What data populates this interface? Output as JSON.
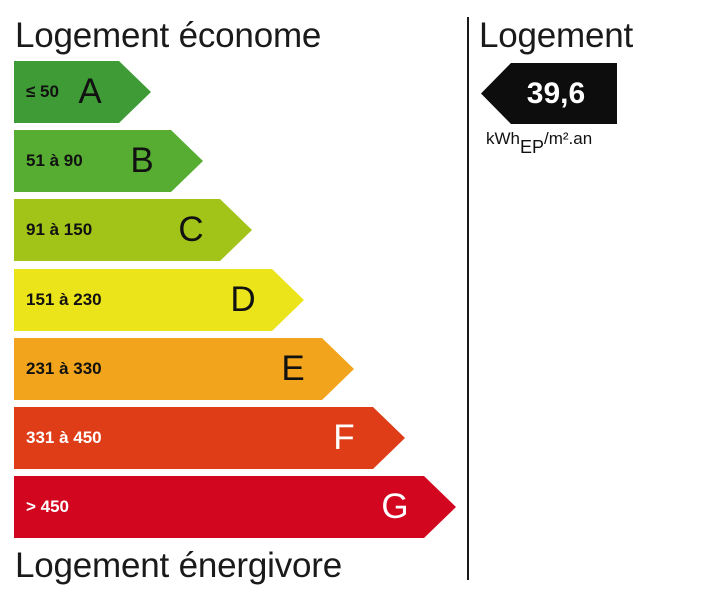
{
  "titles": {
    "top": "Logement économe",
    "bottom": "Logement énergivore",
    "right": "Logement"
  },
  "bands": [
    {
      "range": "≤ 50",
      "letter": "A",
      "color": "#3f9b35"
    },
    {
      "range": "51 à 90",
      "letter": "B",
      "color": "#56ad31"
    },
    {
      "range": "91 à 150",
      "letter": "C",
      "color": "#a2c317"
    },
    {
      "range": "151 à 230",
      "letter": "D",
      "color": "#ece41b"
    },
    {
      "range": "231 à 330",
      "letter": "E",
      "color": "#f2a51c"
    },
    {
      "range": "331 à 450",
      "letter": "F",
      "color": "#df3c18"
    },
    {
      "range": "> 450",
      "letter": "G",
      "color": "#d2061e"
    }
  ],
  "indicator": {
    "value": "39,6",
    "color": "#0d0d0d",
    "unit_prefix": "kWh",
    "unit_sub": "EP",
    "unit_suffix": "/m².an"
  }
}
